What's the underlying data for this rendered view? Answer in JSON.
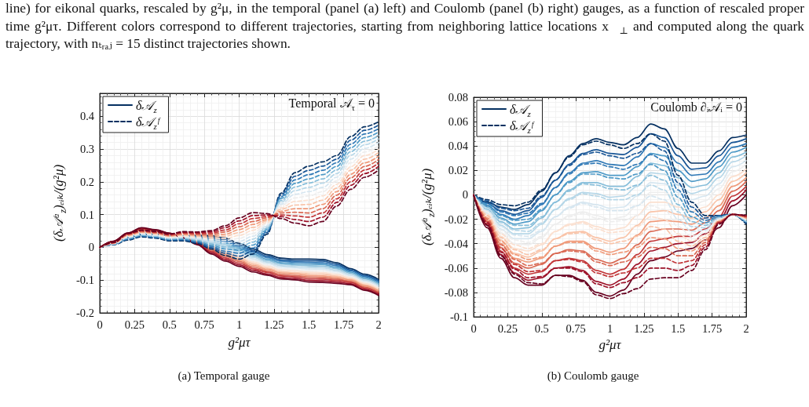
{
  "chart_data": [
    {
      "type": "other",
      "annotations": [
        "line) for eikonal quarks, rescaled by g²μ, in the temporal (panel (a) left) and Coulomb (panel (b) right) gauges, as a function of rescaled proper time g²μτ. Different colors correspond to different trajectories, starting from neighboring lattice locations x⃗$_{⊥}$ and computed along the quark trajectory, with nₜᵣₐⱼ = 15 distinct trajectories shown."
      ]
    },
    {
      "type": "line",
      "title": "(a) Temporal gauge",
      "xlabel": "g²μτ",
      "ylabel": "(δ𝒜ᵃ$_{z}$)ₑᵢₖ/(g²μ)",
      "annotations": [
        "Temporal 𝒜$_{τ}$ = 0"
      ],
      "x": [
        0,
        0.1,
        0.2,
        0.3,
        0.4,
        0.5,
        0.6,
        0.7,
        0.8,
        0.9,
        1,
        1.1,
        1.2,
        1.3,
        1.4,
        1.5,
        1.6,
        1.7,
        1.8,
        1.9,
        2
      ],
      "xlim": [
        0,
        2
      ],
      "xticks": [
        0,
        0.25,
        0.5,
        0.75,
        1,
        1.25,
        1.5,
        1.75,
        2
      ],
      "ylim": [
        -0.2,
        0.47
      ],
      "yticks": [
        -0.2,
        -0.1,
        0,
        0.1,
        0.2,
        0.3,
        0.4
      ],
      "grid": true,
      "legend": "top left",
      "marker": "none",
      "series": [
        {
          "name": "δ𝒜$_{z}$",
          "color": "#053061",
          "line_style": "solid",
          "values": [
            0,
            0.012,
            0.03,
            0.039,
            0.04,
            0.036,
            0.035,
            0.036,
            0.036,
            0.028,
            0.012,
            -0.005,
            -0.022,
            -0.033,
            -0.036,
            -0.036,
            -0.037,
            -0.047,
            -0.065,
            -0.082,
            -0.098
          ]
        },
        {
          "color": "#195696",
          "line_style": "solid",
          "values": [
            0,
            0.013,
            0.031,
            0.041,
            0.041,
            0.037,
            0.035,
            0.034,
            0.032,
            0.023,
            0.007,
            -0.01,
            -0.027,
            -0.038,
            -0.041,
            -0.041,
            -0.042,
            -0.052,
            -0.069,
            -0.086,
            -0.102
          ]
        },
        {
          "color": "#3079b6",
          "line_style": "solid",
          "values": [
            0,
            0.013,
            0.032,
            0.042,
            0.042,
            0.037,
            0.034,
            0.032,
            0.028,
            0.018,
            0.002,
            -0.015,
            -0.031,
            -0.042,
            -0.045,
            -0.046,
            -0.047,
            -0.056,
            -0.072,
            -0.089,
            -0.105
          ]
        },
        {
          "color": "#4e9ac7",
          "line_style": "solid",
          "values": [
            0,
            0.014,
            0.033,
            0.044,
            0.043,
            0.038,
            0.034,
            0.03,
            0.024,
            0.013,
            -0.003,
            -0.02,
            -0.036,
            -0.047,
            -0.05,
            -0.051,
            -0.052,
            -0.061,
            -0.076,
            -0.093,
            -0.109
          ]
        },
        {
          "color": "#87beda",
          "line_style": "solid",
          "values": [
            0,
            0.014,
            0.034,
            0.045,
            0.044,
            0.038,
            0.033,
            0.028,
            0.02,
            0.008,
            -0.008,
            -0.025,
            -0.04,
            -0.051,
            -0.054,
            -0.056,
            -0.057,
            -0.065,
            -0.079,
            -0.096,
            -0.112
          ]
        },
        {
          "color": "#b6d7e8",
          "line_style": "solid",
          "values": [
            0,
            0.015,
            0.035,
            0.047,
            0.045,
            0.039,
            0.033,
            0.026,
            0.016,
            0.003,
            -0.013,
            -0.03,
            -0.045,
            -0.056,
            -0.059,
            -0.061,
            -0.062,
            -0.07,
            -0.083,
            -0.1,
            -0.116
          ]
        },
        {
          "color": "#d6e6f0",
          "line_style": "solid",
          "values": [
            0,
            0.015,
            0.036,
            0.048,
            0.046,
            0.039,
            0.032,
            0.024,
            0.012,
            -0.002,
            -0.018,
            -0.035,
            -0.049,
            -0.06,
            -0.063,
            -0.066,
            -0.067,
            -0.074,
            -0.086,
            -0.103,
            -0.119
          ]
        },
        {
          "color": "#eeeeee",
          "line_style": "solid",
          "values": [
            0,
            0.016,
            0.037,
            0.05,
            0.047,
            0.04,
            0.032,
            0.022,
            0.008,
            -0.007,
            -0.023,
            -0.04,
            -0.054,
            -0.065,
            -0.068,
            -0.071,
            -0.072,
            -0.079,
            -0.09,
            -0.107,
            -0.123
          ]
        },
        {
          "color": "#fbe0d0",
          "line_style": "solid",
          "values": [
            0,
            0.016,
            0.038,
            0.051,
            0.048,
            0.04,
            0.031,
            0.02,
            0.004,
            -0.012,
            -0.028,
            -0.045,
            -0.058,
            -0.069,
            -0.072,
            -0.076,
            -0.077,
            -0.083,
            -0.093,
            -0.11,
            -0.126
          ]
        },
        {
          "color": "#f9c4a9",
          "line_style": "solid",
          "values": [
            0,
            0.017,
            0.039,
            0.053,
            0.049,
            0.041,
            0.031,
            0.018,
            0,
            -0.017,
            -0.033,
            -0.05,
            -0.063,
            -0.074,
            -0.077,
            -0.081,
            -0.082,
            -0.088,
            -0.097,
            -0.114,
            -0.13
          ]
        },
        {
          "color": "#f09b7b",
          "line_style": "solid",
          "values": [
            0,
            0.017,
            0.04,
            0.054,
            0.05,
            0.041,
            0.03,
            0.016,
            -0.004,
            -0.022,
            -0.038,
            -0.055,
            -0.067,
            -0.078,
            -0.081,
            -0.086,
            -0.087,
            -0.092,
            -0.1,
            -0.117,
            -0.133
          ]
        },
        {
          "color": "#da6a54",
          "line_style": "solid",
          "values": [
            0,
            0.018,
            0.041,
            0.056,
            0.051,
            0.042,
            0.03,
            0.014,
            -0.008,
            -0.027,
            -0.043,
            -0.06,
            -0.072,
            -0.083,
            -0.086,
            -0.091,
            -0.092,
            -0.097,
            -0.104,
            -0.121,
            -0.137
          ]
        },
        {
          "color": "#c23739",
          "line_style": "solid",
          "values": [
            0,
            0.018,
            0.042,
            0.057,
            0.052,
            0.042,
            0.029,
            0.012,
            -0.012,
            -0.032,
            -0.048,
            -0.065,
            -0.076,
            -0.087,
            -0.09,
            -0.096,
            -0.097,
            -0.101,
            -0.107,
            -0.124,
            -0.14
          ]
        },
        {
          "color": "#9d1128",
          "line_style": "solid",
          "values": [
            0,
            0.019,
            0.043,
            0.059,
            0.053,
            0.043,
            0.029,
            0.01,
            -0.016,
            -0.037,
            -0.053,
            -0.07,
            -0.081,
            -0.092,
            -0.095,
            -0.101,
            -0.102,
            -0.106,
            -0.111,
            -0.128,
            -0.144
          ]
        },
        {
          "color": "#67001f",
          "line_style": "solid",
          "values": [
            0,
            0.019,
            0.044,
            0.06,
            0.054,
            0.043,
            0.028,
            0.008,
            -0.02,
            -0.042,
            -0.058,
            -0.075,
            -0.085,
            -0.096,
            -0.099,
            -0.106,
            -0.107,
            -0.11,
            -0.114,
            -0.131,
            -0.147
          ]
        },
        {
          "name": "δ𝒜$_{z}$ᶠ",
          "color": "#053061",
          "line_style": "dashed",
          "values": [
            0,
            0.008,
            0.022,
            0.032,
            0.028,
            0.02,
            0.02,
            0.012,
            -0.005,
            -0.025,
            -0.036,
            -0.02,
            0.04,
            0.165,
            0.228,
            0.248,
            0.261,
            0.28,
            0.338,
            0.368,
            0.383
          ]
        },
        {
          "color": "#195696",
          "line_style": "dashed",
          "values": [
            0,
            0.009,
            0.024,
            0.034,
            0.03,
            0.022,
            0.022,
            0.015,
            -0.001,
            -0.018,
            -0.027,
            -0.011,
            0.045,
            0.16,
            0.217,
            0.235,
            0.248,
            0.269,
            0.327,
            0.357,
            0.373
          ]
        },
        {
          "color": "#3079b6",
          "line_style": "dashed",
          "values": [
            0,
            0.009,
            0.025,
            0.035,
            0.031,
            0.023,
            0.024,
            0.017,
            0.003,
            -0.012,
            -0.018,
            -0.002,
            0.049,
            0.154,
            0.206,
            0.222,
            0.235,
            0.258,
            0.315,
            0.346,
            0.362
          ]
        },
        {
          "color": "#4e9ac7",
          "line_style": "dashed",
          "values": [
            0,
            0.01,
            0.027,
            0.037,
            0.033,
            0.025,
            0.026,
            0.02,
            0.007,
            -0.005,
            -0.009,
            0.007,
            0.054,
            0.149,
            0.195,
            0.209,
            0.222,
            0.247,
            0.304,
            0.335,
            0.352
          ]
        },
        {
          "color": "#87beda",
          "line_style": "dashed",
          "values": [
            0,
            0.01,
            0.028,
            0.038,
            0.034,
            0.026,
            0.028,
            0.022,
            0.011,
            0.001,
            0,
            0.016,
            0.058,
            0.143,
            0.184,
            0.196,
            0.209,
            0.236,
            0.292,
            0.324,
            0.341
          ]
        },
        {
          "color": "#b6d7e8",
          "line_style": "dashed",
          "values": [
            0,
            0.011,
            0.03,
            0.04,
            0.036,
            0.028,
            0.03,
            0.025,
            0.015,
            0.008,
            0.009,
            0.025,
            0.063,
            0.138,
            0.173,
            0.183,
            0.196,
            0.225,
            0.281,
            0.313,
            0.331
          ]
        },
        {
          "color": "#d6e6f0",
          "line_style": "dashed",
          "values": [
            0,
            0.011,
            0.031,
            0.041,
            0.037,
            0.029,
            0.032,
            0.027,
            0.019,
            0.014,
            0.018,
            0.034,
            0.067,
            0.132,
            0.162,
            0.17,
            0.183,
            0.214,
            0.269,
            0.302,
            0.32
          ]
        },
        {
          "color": "#eeeeee",
          "line_style": "dashed",
          "values": [
            0,
            0.012,
            0.033,
            0.043,
            0.039,
            0.031,
            0.034,
            0.03,
            0.023,
            0.021,
            0.027,
            0.043,
            0.072,
            0.127,
            0.151,
            0.157,
            0.17,
            0.203,
            0.258,
            0.291,
            0.31
          ]
        },
        {
          "color": "#fbe0d0",
          "line_style": "dashed",
          "values": [
            0,
            0.012,
            0.034,
            0.044,
            0.04,
            0.032,
            0.036,
            0.032,
            0.027,
            0.027,
            0.036,
            0.052,
            0.076,
            0.121,
            0.14,
            0.144,
            0.157,
            0.192,
            0.246,
            0.28,
            0.299
          ]
        },
        {
          "color": "#f9c4a9",
          "line_style": "dashed",
          "values": [
            0,
            0.013,
            0.036,
            0.046,
            0.042,
            0.034,
            0.038,
            0.035,
            0.031,
            0.034,
            0.045,
            0.061,
            0.081,
            0.116,
            0.129,
            0.131,
            0.144,
            0.181,
            0.235,
            0.269,
            0.289
          ]
        },
        {
          "color": "#f09b7b",
          "line_style": "dashed",
          "values": [
            0,
            0.013,
            0.037,
            0.047,
            0.043,
            0.035,
            0.04,
            0.037,
            0.035,
            0.04,
            0.054,
            0.07,
            0.085,
            0.11,
            0.118,
            0.118,
            0.131,
            0.17,
            0.223,
            0.258,
            0.278
          ]
        },
        {
          "color": "#da6a54",
          "line_style": "dashed",
          "values": [
            0,
            0.014,
            0.039,
            0.049,
            0.045,
            0.037,
            0.042,
            0.04,
            0.039,
            0.047,
            0.063,
            0.079,
            0.09,
            0.105,
            0.107,
            0.105,
            0.118,
            0.159,
            0.212,
            0.247,
            0.268
          ]
        },
        {
          "color": "#c23739",
          "line_style": "dashed",
          "values": [
            0,
            0.014,
            0.04,
            0.05,
            0.046,
            0.038,
            0.044,
            0.042,
            0.043,
            0.053,
            0.072,
            0.088,
            0.094,
            0.099,
            0.096,
            0.092,
            0.105,
            0.148,
            0.2,
            0.236,
            0.257
          ]
        },
        {
          "color": "#9d1128",
          "line_style": "dashed",
          "values": [
            0,
            0.015,
            0.042,
            0.052,
            0.048,
            0.04,
            0.046,
            0.045,
            0.047,
            0.06,
            0.081,
            0.097,
            0.099,
            0.094,
            0.085,
            0.079,
            0.092,
            0.137,
            0.189,
            0.225,
            0.247
          ]
        },
        {
          "color": "#67001f",
          "line_style": "dashed",
          "values": [
            0,
            0.015,
            0.043,
            0.053,
            0.049,
            0.041,
            0.048,
            0.047,
            0.051,
            0.066,
            0.09,
            0.106,
            0.103,
            0.088,
            0.074,
            0.066,
            0.079,
            0.126,
            0.177,
            0.214,
            0.236
          ]
        }
      ]
    },
    {
      "type": "line",
      "title": "(b) Coulomb gauge",
      "xlabel": "g²μτ",
      "ylabel": "(δ𝒜ᵃ$_{z}$)ₑᵢₖ/(g²μ)",
      "annotations": [
        "Coulomb ∂ᵢ𝒜ᵢ = 0"
      ],
      "x": [
        0,
        0.1,
        0.2,
        0.3,
        0.4,
        0.5,
        0.6,
        0.7,
        0.8,
        0.9,
        1,
        1.1,
        1.2,
        1.3,
        1.4,
        1.5,
        1.6,
        1.7,
        1.8,
        1.9,
        2
      ],
      "xlim": [
        0,
        2
      ],
      "xticks": [
        0,
        0.25,
        0.5,
        0.75,
        1,
        1.25,
        1.5,
        1.75,
        2
      ],
      "ylim": [
        -0.1,
        0.08
      ],
      "yticks": [
        -0.1,
        -0.08,
        -0.06,
        -0.04,
        -0.02,
        0,
        0.02,
        0.04,
        0.06,
        0.08
      ],
      "grid": true,
      "legend": "top left",
      "marker": "none",
      "series": [
        {
          "name": "δ𝒜$_{z}$",
          "color": "#053061",
          "line_style": "solid",
          "values": [
            0,
            -0.006,
            -0.01,
            -0.012,
            -0.008,
            0.003,
            0.018,
            0.032,
            0.042,
            0.046,
            0.043,
            0.041,
            0.047,
            0.058,
            0.054,
            0.038,
            0.026,
            0.026,
            0.036,
            0.047,
            0.049
          ]
        },
        {
          "color": "#195696",
          "line_style": "solid",
          "values": [
            0,
            -0.007,
            -0.013,
            -0.016,
            -0.013,
            -0.002,
            0.012,
            0.025,
            0.034,
            0.037,
            0.034,
            0.033,
            0.039,
            0.05,
            0.047,
            0.032,
            0.021,
            0.022,
            0.032,
            0.043,
            0.046
          ]
        },
        {
          "color": "#3079b6",
          "line_style": "solid",
          "values": [
            0,
            -0.009,
            -0.016,
            -0.02,
            -0.017,
            -0.008,
            0.006,
            0.018,
            0.026,
            0.028,
            0.025,
            0.024,
            0.031,
            0.042,
            0.039,
            0.026,
            0.016,
            0.017,
            0.027,
            0.039,
            0.042
          ]
        },
        {
          "color": "#4e9ac7",
          "line_style": "solid",
          "values": [
            0,
            -0.01,
            -0.019,
            -0.024,
            -0.022,
            -0.013,
            0,
            0.011,
            0.018,
            0.019,
            0.016,
            0.016,
            0.023,
            0.034,
            0.032,
            0.02,
            0.011,
            0.013,
            0.023,
            0.035,
            0.039
          ]
        },
        {
          "color": "#87beda",
          "line_style": "solid",
          "values": [
            0,
            -0.012,
            -0.022,
            -0.028,
            -0.027,
            -0.019,
            -0.006,
            0.004,
            0.01,
            0.01,
            0.007,
            0.007,
            0.015,
            0.026,
            0.024,
            0.014,
            0.006,
            0.008,
            0.018,
            0.031,
            0.035
          ]
        },
        {
          "color": "#b6d7e8",
          "line_style": "solid",
          "values": [
            0,
            -0.013,
            -0.025,
            -0.032,
            -0.032,
            -0.024,
            -0.012,
            -0.003,
            0.002,
            0.001,
            -0.002,
            -0.001,
            0.007,
            0.018,
            0.017,
            0.008,
            0.001,
            0.004,
            0.014,
            0.027,
            0.032
          ]
        },
        {
          "color": "#d6e6f0",
          "line_style": "solid",
          "values": [
            0,
            -0.015,
            -0.028,
            -0.036,
            -0.036,
            -0.03,
            -0.018,
            -0.01,
            -0.006,
            -0.008,
            -0.011,
            -0.01,
            -0.001,
            0.01,
            0.009,
            0.002,
            -0.004,
            -0.001,
            0.009,
            0.023,
            0.028
          ]
        },
        {
          "color": "#eeeeee",
          "line_style": "solid",
          "values": [
            0,
            -0.016,
            -0.031,
            -0.04,
            -0.041,
            -0.035,
            -0.024,
            -0.017,
            -0.014,
            -0.017,
            -0.02,
            -0.018,
            -0.009,
            0.002,
            0.002,
            -0.004,
            -0.009,
            -0.005,
            0.005,
            0.019,
            0.025
          ]
        },
        {
          "color": "#fbe0d0",
          "line_style": "solid",
          "values": [
            0,
            -0.018,
            -0.034,
            -0.044,
            -0.046,
            -0.041,
            -0.03,
            -0.024,
            -0.022,
            -0.026,
            -0.029,
            -0.027,
            -0.017,
            -0.006,
            -0.006,
            -0.01,
            -0.014,
            -0.01,
            0,
            0.015,
            0.021
          ]
        },
        {
          "color": "#f9c4a9",
          "line_style": "solid",
          "values": [
            0,
            -0.019,
            -0.037,
            -0.048,
            -0.051,
            -0.046,
            -0.036,
            -0.031,
            -0.03,
            -0.035,
            -0.038,
            -0.035,
            -0.025,
            -0.014,
            -0.013,
            -0.016,
            -0.019,
            -0.014,
            -0.004,
            0.011,
            0.018
          ]
        },
        {
          "color": "#f09b7b",
          "line_style": "solid",
          "values": [
            0,
            -0.021,
            -0.04,
            -0.052,
            -0.055,
            -0.052,
            -0.042,
            -0.038,
            -0.038,
            -0.044,
            -0.047,
            -0.044,
            -0.033,
            -0.022,
            -0.021,
            -0.022,
            -0.024,
            -0.019,
            -0.009,
            0.007,
            0.014
          ]
        },
        {
          "color": "#da6a54",
          "line_style": "solid",
          "values": [
            0,
            -0.022,
            -0.043,
            -0.056,
            -0.06,
            -0.057,
            -0.048,
            -0.045,
            -0.046,
            -0.053,
            -0.056,
            -0.052,
            -0.041,
            -0.03,
            -0.028,
            -0.028,
            -0.029,
            -0.023,
            -0.013,
            0.003,
            0.011
          ]
        },
        {
          "color": "#c23739",
          "line_style": "solid",
          "values": [
            0,
            -0.024,
            -0.046,
            -0.06,
            -0.065,
            -0.063,
            -0.054,
            -0.052,
            -0.054,
            -0.062,
            -0.065,
            -0.061,
            -0.049,
            -0.038,
            -0.036,
            -0.034,
            -0.034,
            -0.028,
            -0.018,
            -0.001,
            0.007
          ]
        },
        {
          "color": "#9d1128",
          "line_style": "solid",
          "values": [
            0,
            -0.025,
            -0.049,
            -0.064,
            -0.07,
            -0.068,
            -0.06,
            -0.059,
            -0.062,
            -0.071,
            -0.074,
            -0.069,
            -0.057,
            -0.046,
            -0.043,
            -0.04,
            -0.039,
            -0.032,
            -0.022,
            -0.005,
            0.004
          ]
        },
        {
          "color": "#67001f",
          "line_style": "solid",
          "values": [
            0,
            -0.027,
            -0.052,
            -0.068,
            -0.074,
            -0.074,
            -0.066,
            -0.066,
            -0.07,
            -0.08,
            -0.083,
            -0.078,
            -0.065,
            -0.054,
            -0.051,
            -0.046,
            -0.044,
            -0.037,
            -0.027,
            -0.009,
            0
          ]
        },
        {
          "name": "δ𝒜$_{z}$ᶠ",
          "color": "#053061",
          "line_style": "dashed",
          "values": [
            0,
            -0.004,
            -0.008,
            -0.009,
            -0.006,
            0.004,
            0.018,
            0.031,
            0.041,
            0.044,
            0.041,
            0.038,
            0.042,
            0.05,
            0.044,
            0.016,
            -0.006,
            -0.017,
            -0.017,
            -0.016,
            -0.024
          ]
        },
        {
          "color": "#195696",
          "line_style": "dashed",
          "values": [
            0,
            -0.005,
            -0.011,
            -0.013,
            -0.011,
            -0.001,
            0.012,
            0.024,
            0.033,
            0.035,
            0.032,
            0.03,
            0.034,
            0.042,
            0.036,
            0.01,
            -0.01,
            -0.019,
            -0.017,
            -0.016,
            -0.023
          ]
        },
        {
          "color": "#3079b6",
          "line_style": "dashed",
          "values": [
            0,
            -0.007,
            -0.014,
            -0.017,
            -0.015,
            -0.007,
            0.006,
            0.017,
            0.025,
            0.026,
            0.023,
            0.021,
            0.025,
            0.033,
            0.028,
            0.004,
            -0.014,
            -0.021,
            -0.018,
            -0.016,
            -0.023
          ]
        },
        {
          "color": "#4e9ac7",
          "line_style": "dashed",
          "values": [
            0,
            -0.008,
            -0.017,
            -0.021,
            -0.02,
            -0.012,
            0,
            0.01,
            0.017,
            0.017,
            0.014,
            0.013,
            0.017,
            0.025,
            0.02,
            -0.002,
            -0.018,
            -0.023,
            -0.018,
            -0.016,
            -0.022
          ]
        },
        {
          "color": "#87beda",
          "line_style": "dashed",
          "values": [
            0,
            -0.01,
            -0.02,
            -0.025,
            -0.025,
            -0.018,
            -0.006,
            0.003,
            0.009,
            0.008,
            0.005,
            0.004,
            0.008,
            0.016,
            0.012,
            -0.008,
            -0.022,
            -0.025,
            -0.019,
            -0.016,
            -0.022
          ]
        },
        {
          "color": "#b6d7e8",
          "line_style": "dashed",
          "values": [
            0,
            -0.011,
            -0.023,
            -0.029,
            -0.03,
            -0.023,
            -0.012,
            -0.004,
            0.001,
            -0.001,
            -0.004,
            -0.004,
            0,
            0.008,
            0.004,
            -0.014,
            -0.026,
            -0.027,
            -0.019,
            -0.016,
            -0.021
          ]
        },
        {
          "color": "#d6e6f0",
          "line_style": "dashed",
          "values": [
            0,
            -0.013,
            -0.026,
            -0.033,
            -0.034,
            -0.029,
            -0.018,
            -0.011,
            -0.007,
            -0.01,
            -0.013,
            -0.013,
            -0.009,
            -0.001,
            -0.004,
            -0.02,
            -0.03,
            -0.029,
            -0.02,
            -0.016,
            -0.021
          ]
        },
        {
          "color": "#eeeeee",
          "line_style": "dashed",
          "values": [
            0,
            -0.014,
            -0.029,
            -0.037,
            -0.039,
            -0.034,
            -0.024,
            -0.018,
            -0.015,
            -0.019,
            -0.022,
            -0.021,
            -0.017,
            -0.009,
            -0.012,
            -0.026,
            -0.034,
            -0.031,
            -0.02,
            -0.016,
            -0.02
          ]
        },
        {
          "color": "#fbe0d0",
          "line_style": "dashed",
          "values": [
            0,
            -0.016,
            -0.032,
            -0.041,
            -0.044,
            -0.04,
            -0.03,
            -0.025,
            -0.023,
            -0.028,
            -0.031,
            -0.03,
            -0.026,
            -0.018,
            -0.02,
            -0.032,
            -0.038,
            -0.033,
            -0.021,
            -0.016,
            -0.02
          ]
        },
        {
          "color": "#f9c4a9",
          "line_style": "dashed",
          "values": [
            0,
            -0.017,
            -0.035,
            -0.045,
            -0.049,
            -0.045,
            -0.036,
            -0.032,
            -0.031,
            -0.037,
            -0.04,
            -0.038,
            -0.034,
            -0.026,
            -0.028,
            -0.038,
            -0.042,
            -0.035,
            -0.021,
            -0.016,
            -0.019
          ]
        },
        {
          "color": "#f09b7b",
          "line_style": "dashed",
          "values": [
            0,
            -0.019,
            -0.038,
            -0.049,
            -0.053,
            -0.051,
            -0.042,
            -0.039,
            -0.039,
            -0.046,
            -0.049,
            -0.047,
            -0.043,
            -0.035,
            -0.036,
            -0.044,
            -0.046,
            -0.037,
            -0.022,
            -0.016,
            -0.019
          ]
        },
        {
          "color": "#da6a54",
          "line_style": "dashed",
          "values": [
            0,
            -0.02,
            -0.041,
            -0.053,
            -0.058,
            -0.056,
            -0.048,
            -0.046,
            -0.047,
            -0.055,
            -0.058,
            -0.055,
            -0.051,
            -0.043,
            -0.044,
            -0.05,
            -0.05,
            -0.039,
            -0.022,
            -0.016,
            -0.018
          ]
        },
        {
          "color": "#c23739",
          "line_style": "dashed",
          "values": [
            0,
            -0.022,
            -0.044,
            -0.057,
            -0.063,
            -0.062,
            -0.054,
            -0.053,
            -0.055,
            -0.064,
            -0.067,
            -0.064,
            -0.06,
            -0.052,
            -0.052,
            -0.056,
            -0.054,
            -0.041,
            -0.023,
            -0.016,
            -0.018
          ]
        },
        {
          "color": "#9d1128",
          "line_style": "dashed",
          "values": [
            0,
            -0.023,
            -0.047,
            -0.061,
            -0.068,
            -0.067,
            -0.06,
            -0.06,
            -0.063,
            -0.073,
            -0.076,
            -0.072,
            -0.068,
            -0.06,
            -0.06,
            -0.062,
            -0.058,
            -0.043,
            -0.023,
            -0.016,
            -0.017
          ]
        },
        {
          "color": "#67001f",
          "line_style": "dashed",
          "values": [
            0,
            -0.025,
            -0.05,
            -0.065,
            -0.072,
            -0.073,
            -0.066,
            -0.067,
            -0.071,
            -0.082,
            -0.085,
            -0.081,
            -0.077,
            -0.069,
            -0.068,
            -0.068,
            -0.062,
            -0.045,
            -0.024,
            -0.016,
            -0.017
          ]
        }
      ]
    }
  ]
}
